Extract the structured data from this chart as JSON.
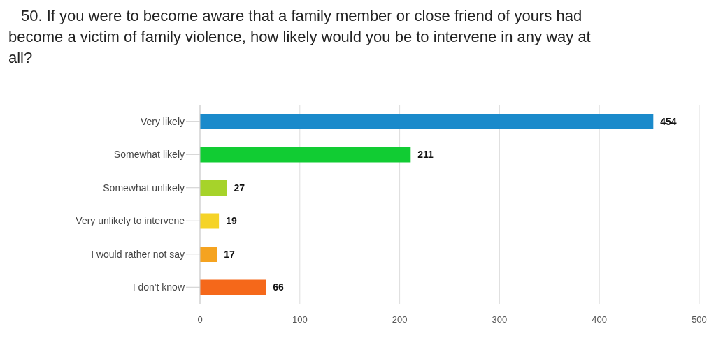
{
  "chart_data": {
    "type": "bar",
    "orientation": "horizontal",
    "title": "50. If you were to become aware that a family member or close friend of yours had become a victim of family violence, how likely would you be to intervene in any way at all?",
    "categories": [
      "Very likely",
      "Somewhat likely",
      "Somewhat unlikely",
      "Very unlikely to intervene",
      "I would rather not say",
      "I don't know"
    ],
    "values": [
      454,
      211,
      27,
      19,
      17,
      66
    ],
    "colors": [
      "#1a8acb",
      "#11cc33",
      "#a6d32a",
      "#f5d327",
      "#f5a320",
      "#f5681a"
    ],
    "xlim": [
      0,
      500
    ],
    "xticks": [
      0,
      100,
      200,
      300,
      400,
      500
    ],
    "grid": "x",
    "data_labels": true
  }
}
